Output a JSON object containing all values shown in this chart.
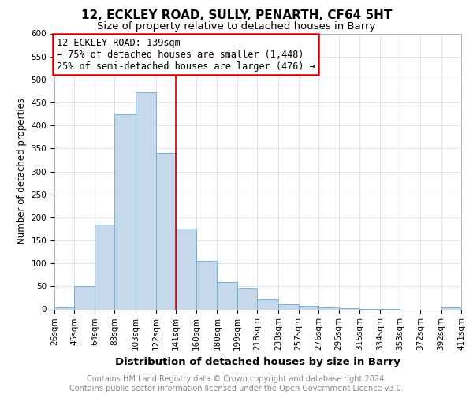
{
  "title": "12, ECKLEY ROAD, SULLY, PENARTH, CF64 5HT",
  "subtitle": "Size of property relative to detached houses in Barry",
  "xlabel": "Distribution of detached houses by size in Barry",
  "ylabel": "Number of detached properties",
  "footer_line1": "Contains HM Land Registry data © Crown copyright and database right 2024.",
  "footer_line2": "Contains public sector information licensed under the Open Government Licence v3.0.",
  "annotation_title": "12 ECKLEY ROAD: 139sqm",
  "annotation_line1": "← 75% of detached houses are smaller (1,448)",
  "annotation_line2": "25% of semi-detached houses are larger (476) →",
  "bins": [
    26,
    45,
    64,
    83,
    103,
    122,
    141,
    160,
    180,
    199,
    218,
    238,
    257,
    276,
    295,
    315,
    334,
    353,
    372,
    392,
    411
  ],
  "counts": [
    5,
    50,
    185,
    425,
    473,
    340,
    175,
    105,
    60,
    45,
    22,
    12,
    7,
    5,
    2,
    1,
    1,
    0,
    0,
    5
  ],
  "bar_color": "#c6d9ec",
  "bar_edgecolor": "#6aaad4",
  "vline_color": "#cc0000",
  "vline_x_idx": 6,
  "annotation_box_edgecolor": "#cc0000",
  "annotation_box_facecolor": "white",
  "grid_color": "#d0dce8",
  "ylim": [
    0,
    600
  ],
  "yticks": [
    0,
    50,
    100,
    150,
    200,
    250,
    300,
    350,
    400,
    450,
    500,
    550,
    600
  ],
  "title_fontsize": 11,
  "subtitle_fontsize": 9.5,
  "xlabel_fontsize": 9.5,
  "ylabel_fontsize": 8.5,
  "footer_fontsize": 7,
  "tick_fontsize": 7.5,
  "annotation_fontsize": 8.5
}
